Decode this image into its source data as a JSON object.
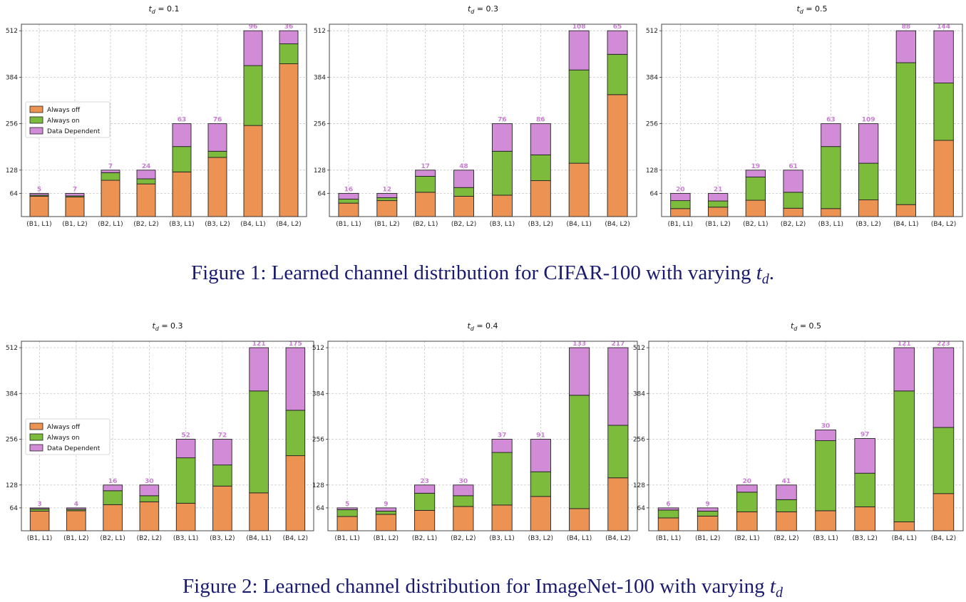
{
  "colors": {
    "always_off": "#ec9252",
    "always_on": "#7dbb3c",
    "data_dependent": "#d28bd6",
    "label": "#c97fd1",
    "caption": "#1a1a6e"
  },
  "legend": [
    "Always off",
    "Always on",
    "Data Dependent"
  ],
  "figures": [
    {
      "caption_prefix": "Figure 1: Learned channel distribution for CIFAR-100 with varying ",
      "caption_var": "t",
      "caption_sub": "d",
      "caption_suffix": "."
    },
    {
      "caption_prefix": "Figure 2: Learned channel distribution for ImageNet-100 with varying ",
      "caption_var": "t",
      "caption_sub": "d",
      "caption_suffix": ""
    }
  ],
  "chart_data": [
    {
      "type": "bar",
      "stacked": true,
      "title_var": "t",
      "title_sub": "d",
      "title_value": "=  0.1",
      "legend_position": "middle-left",
      "grid": true,
      "categories": [
        "(B1, L1)",
        "(B1, L2)",
        "(B2, L1)",
        "(B2, L2)",
        "(B3, L1)",
        "(B3, L2)",
        "(B4, L1)",
        "(B4, L2)"
      ],
      "yticks": [
        64,
        128,
        256,
        384,
        512
      ],
      "ylim": [
        0,
        530
      ],
      "series": [
        {
          "name": "Always off",
          "values": [
            56,
            54,
            100,
            90,
            123,
            163,
            251,
            421
          ]
        },
        {
          "name": "Always on",
          "values": [
            3,
            3,
            21,
            14,
            70,
            17,
            165,
            55
          ]
        },
        {
          "name": "Data Dependent",
          "values": [
            5,
            7,
            7,
            24,
            63,
            76,
            96,
            36
          ]
        }
      ],
      "data_labels": [
        "5",
        "7",
        "7",
        "24",
        "63",
        "76",
        "96",
        "36"
      ]
    },
    {
      "type": "bar",
      "stacked": true,
      "title_var": "t",
      "title_sub": "d",
      "title_value": "=  0.3",
      "legend_position": "none",
      "grid": true,
      "categories": [
        "(B1, L1)",
        "(B1, L2)",
        "(B2, L1)",
        "(B2, L2)",
        "(B3, L1)",
        "(B3, L2)",
        "(B4, L1)",
        "(B4, L2)"
      ],
      "yticks": [
        64,
        128,
        256,
        384,
        512
      ],
      "ylim": [
        0,
        530
      ],
      "series": [
        {
          "name": "Always off",
          "values": [
            37,
            44,
            67,
            56,
            59,
            99,
            147,
            336
          ]
        },
        {
          "name": "Always on",
          "values": [
            11,
            8,
            44,
            24,
            121,
            71,
            257,
            111
          ]
        },
        {
          "name": "Data Dependent",
          "values": [
            16,
            12,
            17,
            48,
            76,
            86,
            108,
            65
          ]
        }
      ],
      "data_labels": [
        "16",
        "12",
        "17",
        "48",
        "76",
        "86",
        "108",
        "65"
      ]
    },
    {
      "type": "bar",
      "stacked": true,
      "title_var": "t",
      "title_sub": "d",
      "title_value": "=  0.5",
      "legend_position": "none",
      "grid": true,
      "categories": [
        "(B1, L1)",
        "(B1, L2)",
        "(B2, L1)",
        "(B2, L2)",
        "(B3, L1)",
        "(B3, L2)",
        "(B4, L1)",
        "(B4, L2)"
      ],
      "yticks": [
        64,
        128,
        256,
        384,
        512
      ],
      "ylim": [
        0,
        530
      ],
      "series": [
        {
          "name": "Always off",
          "values": [
            22,
            26,
            45,
            23,
            22,
            46,
            33,
            210
          ]
        },
        {
          "name": "Always on",
          "values": [
            22,
            17,
            64,
            44,
            171,
            101,
            391,
            158
          ]
        },
        {
          "name": "Data Dependent",
          "values": [
            20,
            21,
            19,
            61,
            63,
            109,
            88,
            144
          ]
        }
      ],
      "data_labels": [
        "20",
        "21",
        "19",
        "61",
        "63",
        "109",
        "88",
        "144"
      ]
    },
    {
      "type": "bar",
      "stacked": true,
      "title_var": "t",
      "title_sub": "d",
      "title_value": "=  0.3",
      "legend_position": "middle-left",
      "grid": true,
      "categories": [
        "(B1, L1)",
        "(B1, L2)",
        "(B2, L1)",
        "(B2, L2)",
        "(B3, L1)",
        "(B3, L2)",
        "(B4, L1)",
        "(B4, L2)"
      ],
      "yticks": [
        64,
        128,
        256,
        384,
        512
      ],
      "ylim": [
        0,
        530
      ],
      "series": [
        {
          "name": "Always off",
          "values": [
            55,
            56,
            73,
            81,
            77,
            125,
            106,
            210
          ]
        },
        {
          "name": "Always on",
          "values": [
            6,
            4,
            39,
            17,
            127,
            59,
            285,
            127
          ]
        },
        {
          "name": "Data Dependent",
          "values": [
            3,
            4,
            16,
            30,
            52,
            72,
            121,
            175
          ]
        }
      ],
      "data_labels": [
        "3",
        "4",
        "16",
        "30",
        "52",
        "72",
        "121",
        "175"
      ]
    },
    {
      "type": "bar",
      "stacked": true,
      "title_var": "t",
      "title_sub": "d",
      "title_value": "=  0.4",
      "legend_position": "none",
      "grid": true,
      "categories": [
        "(B1, L1)",
        "(B1, L2)",
        "(B2, L1)",
        "(B2, L2)",
        "(B3, L1)",
        "(B3, L2)",
        "(B4, L1)",
        "(B4, L2)"
      ],
      "yticks": [
        64,
        128,
        256,
        384,
        512
      ],
      "ylim": [
        0,
        530
      ],
      "series": [
        {
          "name": "Always off",
          "values": [
            40,
            46,
            57,
            68,
            72,
            96,
            62,
            148
          ]
        },
        {
          "name": "Always on",
          "values": [
            19,
            9,
            48,
            30,
            147,
            69,
            317,
            147
          ]
        },
        {
          "name": "Data Dependent",
          "values": [
            5,
            9,
            23,
            30,
            37,
            91,
            133,
            217
          ]
        }
      ],
      "data_labels": [
        "5",
        "9",
        "23",
        "30",
        "37",
        "91",
        "133",
        "217"
      ]
    },
    {
      "type": "bar",
      "stacked": true,
      "title_var": "t",
      "title_sub": "d",
      "title_value": "=  0.5",
      "legend_position": "none",
      "grid": true,
      "categories": [
        "(B1, L1)",
        "(B1, L2)",
        "(B2, L1)",
        "(B2, L2)",
        "(B3, L1)",
        "(B3, L2)",
        "(B4, L1)",
        "(B4, L2)"
      ],
      "yticks": [
        64,
        128,
        256,
        384,
        512
      ],
      "ylim": [
        0,
        530
      ],
      "series": [
        {
          "name": "Always off",
          "values": [
            36,
            41,
            53,
            53,
            56,
            67,
            25,
            104
          ]
        },
        {
          "name": "Always on",
          "values": [
            22,
            14,
            55,
            34,
            196,
            94,
            366,
            185
          ]
        },
        {
          "name": "Data Dependent",
          "values": [
            6,
            9,
            20,
            41,
            30,
            97,
            121,
            223
          ]
        }
      ],
      "data_labels": [
        "6",
        "9",
        "20",
        "41",
        "30",
        "97",
        "121",
        "223"
      ]
    }
  ]
}
